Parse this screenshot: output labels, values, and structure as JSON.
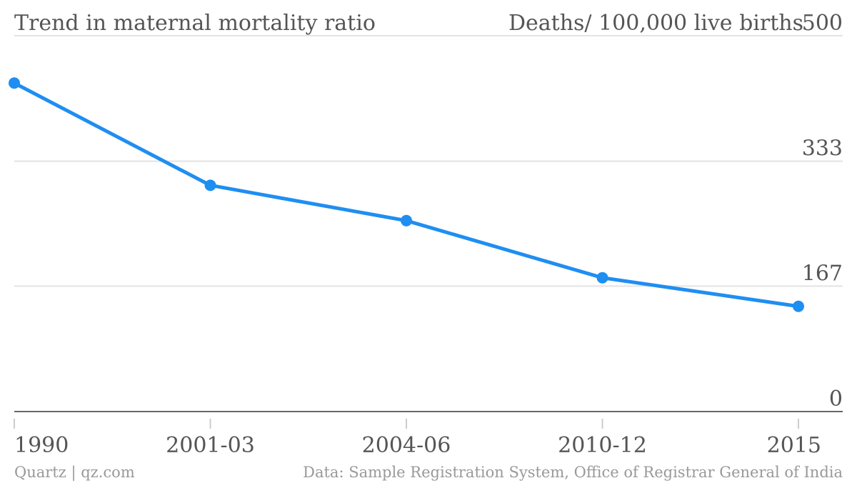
{
  "chart_data": {
    "type": "line",
    "title": "Trend in maternal mortality ratio",
    "ylabel": "Deaths/ 100,000 live births",
    "categories": [
      "1990",
      "2001-03",
      "2004-06",
      "2010-12",
      "2015"
    ],
    "series": [
      {
        "values": [
          437,
          301,
          254,
          178,
          140
        ],
        "color": "#1f8ef1"
      }
    ],
    "ylim": [
      0,
      500
    ],
    "yticks": [
      0,
      167,
      333,
      500
    ],
    "grid": true,
    "y_axis_side": "right"
  },
  "footer": {
    "source_left": "Quartz | qz.com",
    "source_right": "Data: Sample Registration System, Office of Registrar General of India"
  }
}
